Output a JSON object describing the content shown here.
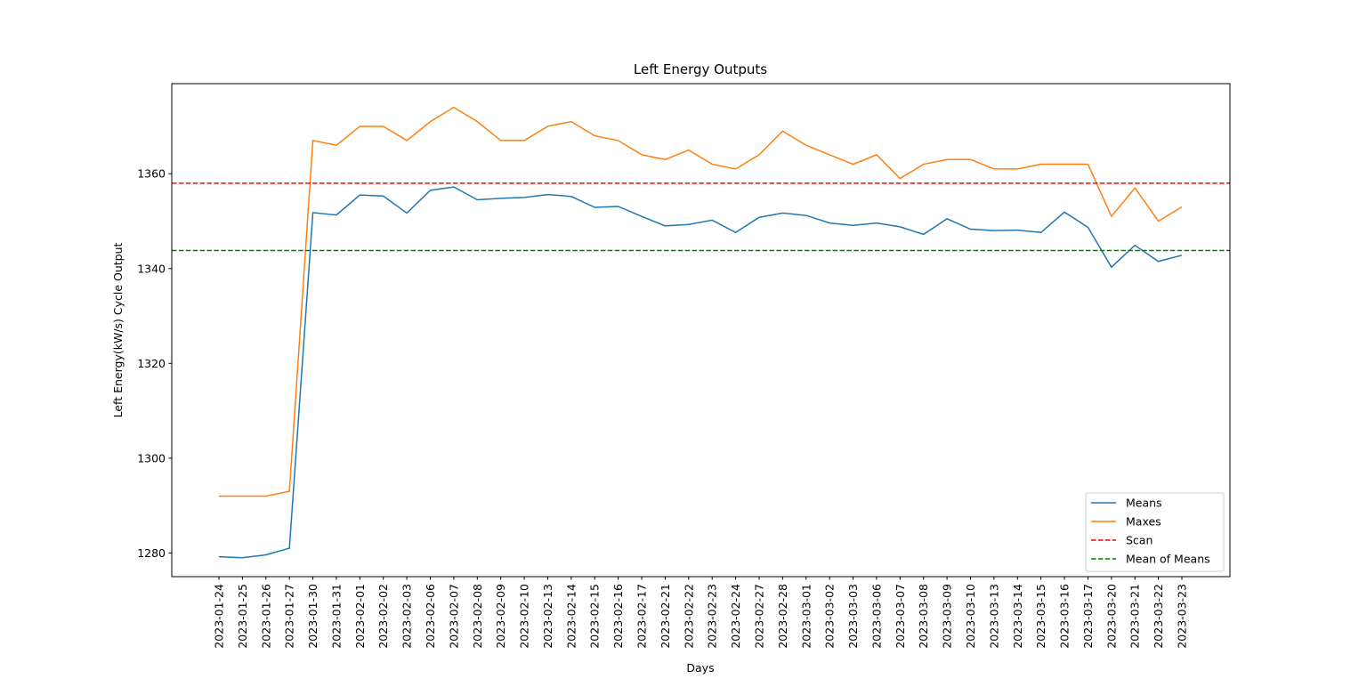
{
  "chart_data": {
    "type": "line",
    "title": "Left Energy Outputs",
    "xlabel": "Days",
    "ylabel": "Left Energy(kW/s) Cycle Output",
    "ylim": [
      1275,
      1379
    ],
    "yticks": [
      1280,
      1300,
      1320,
      1340,
      1360
    ],
    "grid": false,
    "legend_position": "bottom-right",
    "x": [
      "2023-01-24",
      "2023-01-25",
      "2023-01-26",
      "2023-01-27",
      "2023-01-30",
      "2023-01-31",
      "2023-02-01",
      "2023-02-02",
      "2023-02-03",
      "2023-02-06",
      "2023-02-07",
      "2023-02-08",
      "2023-02-09",
      "2023-02-10",
      "2023-02-13",
      "2023-02-14",
      "2023-02-15",
      "2023-02-16",
      "2023-02-17",
      "2023-02-21",
      "2023-02-22",
      "2023-02-23",
      "2023-02-24",
      "2023-02-27",
      "2023-02-28",
      "2023-03-01",
      "2023-03-02",
      "2023-03-03",
      "2023-03-06",
      "2023-03-07",
      "2023-03-08",
      "2023-03-09",
      "2023-03-10",
      "2023-03-13",
      "2023-03-14",
      "2023-03-15",
      "2023-03-16",
      "2023-03-17",
      "2023-03-20",
      "2023-03-21",
      "2023-03-22",
      "2023-03-23"
    ],
    "series": [
      {
        "name": "Means",
        "color": "#1f77b4",
        "style": "solid",
        "values": [
          1279.2,
          1279.0,
          1279.6,
          1281.0,
          1351.8,
          1351.3,
          1355.5,
          1355.3,
          1351.7,
          1356.5,
          1357.2,
          1354.5,
          1354.8,
          1355.0,
          1355.6,
          1355.2,
          1352.9,
          1353.1,
          1351.0,
          1349.0,
          1349.3,
          1350.2,
          1347.6,
          1350.8,
          1351.7,
          1351.2,
          1349.6,
          1349.1,
          1349.6,
          1348.8,
          1347.2,
          1350.5,
          1348.3,
          1348.0,
          1348.1,
          1347.6,
          1351.9,
          1348.7,
          1340.3,
          1344.9,
          1341.5,
          1342.8
        ]
      },
      {
        "name": "Maxes",
        "color": "#ff7f0e",
        "style": "solid",
        "values": [
          1292,
          1292,
          1292,
          1293,
          1367,
          1366,
          1370,
          1370,
          1367,
          1371,
          1374,
          1371,
          1367,
          1367,
          1370,
          1371,
          1368,
          1367,
          1364,
          1363,
          1365,
          1362,
          1361,
          1364,
          1369,
          1366,
          1364,
          1362,
          1364,
          1359,
          1362,
          1363,
          1363,
          1361,
          1361,
          1362,
          1362,
          1362,
          1351,
          1357,
          1350,
          1353
        ]
      },
      {
        "name": "Scan",
        "color": "#ff0000",
        "style": "dashed",
        "value": 1358
      },
      {
        "name": "Mean of Means",
        "color": "#008000",
        "style": "dashed",
        "value": 1343.8
      }
    ]
  }
}
